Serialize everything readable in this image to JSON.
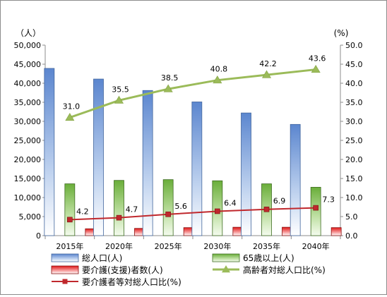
{
  "chart_data": {
    "type": "bar",
    "categories": [
      "2015年",
      "2020年",
      "2025年",
      "2030年",
      "2035年",
      "2040年"
    ],
    "left_axis": {
      "unit_label": "（人）",
      "ylim": [
        0,
        50000
      ],
      "ticks": [
        "0",
        "5,000",
        "10,000",
        "15,000",
        "20,000",
        "25,000",
        "30,000",
        "35,000",
        "40,000",
        "45,000",
        "50,000"
      ]
    },
    "right_axis": {
      "unit_label": "(%)",
      "ylim": [
        0,
        50
      ],
      "ticks": [
        "0.0",
        "5.0",
        "10.0",
        "15.0",
        "20.0",
        "25.0",
        "30.0",
        "35.0",
        "40.0",
        "45.0",
        "50.0"
      ]
    },
    "series": [
      {
        "name": "総人口(人)",
        "type": "bar",
        "axis": "left",
        "color": "#6f96d6",
        "values": [
          43900,
          41100,
          38100,
          35100,
          32200,
          29200
        ]
      },
      {
        "name": "65歳以上(人)",
        "type": "bar",
        "axis": "left",
        "color": "#7fbf4d",
        "values": [
          13600,
          14500,
          14700,
          14400,
          13600,
          12700
        ]
      },
      {
        "name": "要介護(支援)者数(人)",
        "type": "bar",
        "axis": "left",
        "color": "#e02020",
        "values": [
          1800,
          1900,
          2100,
          2200,
          2200,
          2100
        ]
      },
      {
        "name": "高齢者対総人口比(%)",
        "type": "line",
        "axis": "right",
        "color": "#9bbb59",
        "values": [
          31.0,
          35.5,
          38.5,
          40.8,
          42.2,
          43.6
        ],
        "labels": [
          "31.0",
          "35.5",
          "38.5",
          "40.8",
          "42.2",
          "43.6"
        ]
      },
      {
        "name": "要介護者等対総人口比(%)",
        "type": "line",
        "axis": "right",
        "color": "#c0282d",
        "values": [
          4.2,
          4.7,
          5.6,
          6.4,
          6.9,
          7.3
        ],
        "labels": [
          "4.2",
          "4.7",
          "5.6",
          "6.4",
          "6.9",
          "7.3"
        ]
      }
    ],
    "legend_position": "bottom",
    "grid": false
  }
}
